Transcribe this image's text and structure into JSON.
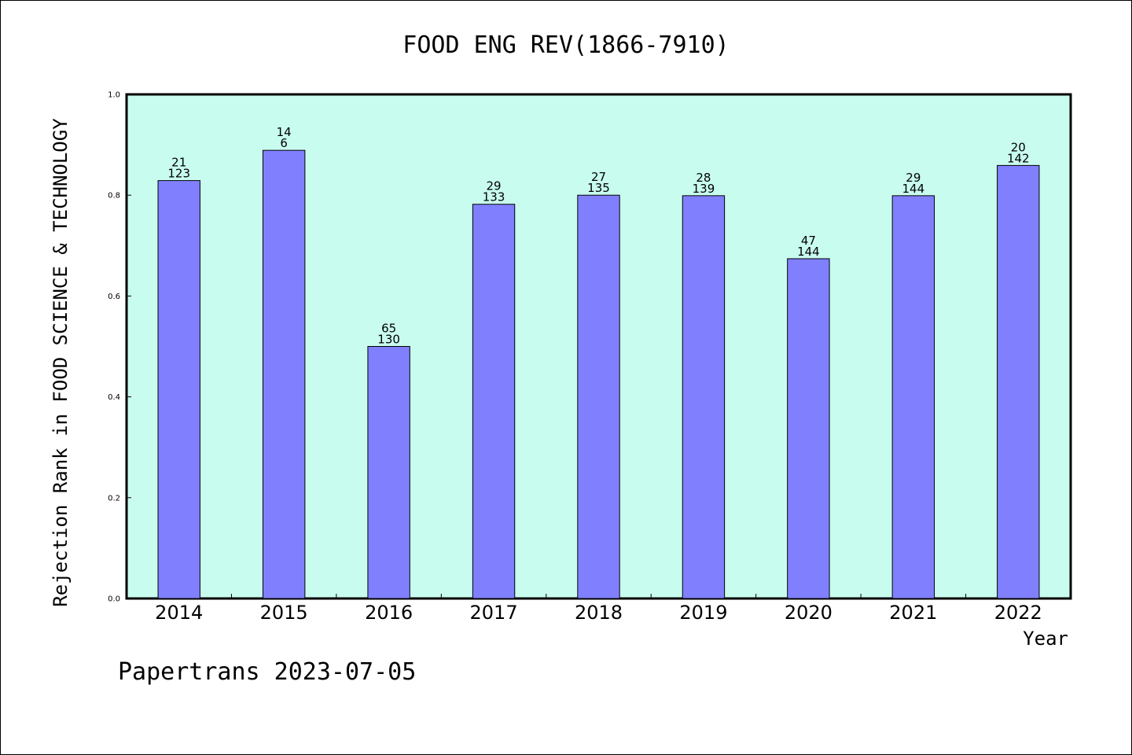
{
  "chart_data": {
    "type": "bar",
    "title": "FOOD ENG REV(1866-7910)",
    "xlabel": "Year",
    "ylabel": "Rejection Rank in FOOD SCIENCE & TECHNOLOGY",
    "categories": [
      "2014",
      "2015",
      "2016",
      "2017",
      "2018",
      "2019",
      "2020",
      "2021",
      "2022"
    ],
    "values": [
      0.829,
      0.889,
      0.5,
      0.782,
      0.8,
      0.799,
      0.674,
      0.799,
      0.859
    ],
    "labels_top": [
      "21",
      "14",
      "65",
      "29",
      "27",
      "28",
      "47",
      "29",
      "20"
    ],
    "labels_bottom": [
      "123",
      "6",
      "130",
      "133",
      "135",
      "139",
      "144",
      "144",
      "142"
    ],
    "ylim": [
      0,
      1.0
    ],
    "yticks": [
      "0.0",
      "0.2",
      "0.4",
      "0.6",
      "0.8",
      "1.0"
    ],
    "grid": false,
    "colors": {
      "plot_background": "#c8fcee",
      "bar_fill": "#8080ff",
      "bar_stroke": "#000000"
    }
  },
  "footer": {
    "text": "Papertrans 2023-07-05"
  }
}
